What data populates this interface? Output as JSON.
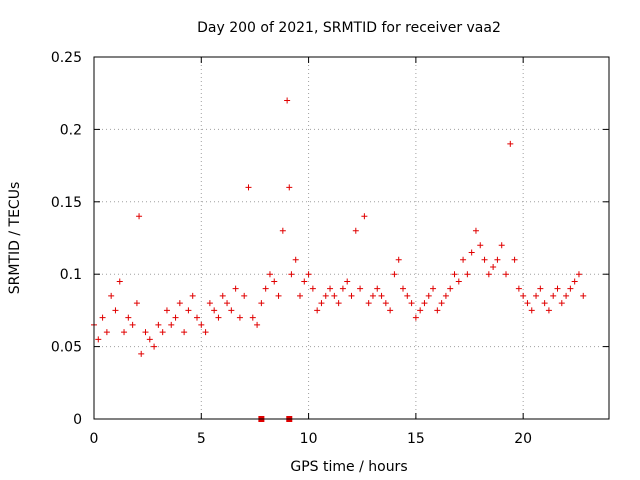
{
  "chart_data": {
    "type": "scatter",
    "title": "Day 200 of 2021, SRMTID for receiver vaa2",
    "xlabel": "GPS time / hours",
    "ylabel": "SRMTID / TECUs",
    "xlim": [
      0,
      24
    ],
    "ylim": [
      0,
      0.25
    ],
    "xticks": [
      0,
      5,
      10,
      15,
      20
    ],
    "yticks": [
      0,
      0.05,
      0.1,
      0.15,
      0.2,
      0.25
    ],
    "xtick_labels": [
      "0",
      "5",
      "10",
      "15",
      "20"
    ],
    "ytick_labels": [
      "0",
      "0.05",
      "0.1",
      "0.15",
      "0.2",
      "0.25"
    ],
    "grid": true,
    "marker": "+",
    "color": "#e00000",
    "series": [
      {
        "name": "SRMTID",
        "x": [
          0.0,
          0.2,
          0.4,
          0.6,
          0.8,
          1.0,
          1.2,
          1.4,
          1.6,
          1.8,
          2.0,
          2.1,
          2.2,
          2.4,
          2.6,
          2.8,
          3.0,
          3.2,
          3.4,
          3.6,
          3.8,
          4.0,
          4.2,
          4.4,
          4.6,
          4.8,
          5.0,
          5.2,
          5.4,
          5.6,
          5.8,
          6.0,
          6.2,
          6.4,
          6.6,
          6.8,
          7.0,
          7.2,
          7.4,
          7.6,
          7.8,
          8.0,
          8.2,
          8.4,
          8.6,
          8.8,
          9.0,
          9.1,
          9.2,
          9.4,
          9.6,
          9.8,
          10.0,
          10.2,
          10.4,
          10.6,
          10.8,
          11.0,
          11.2,
          11.4,
          11.6,
          11.8,
          12.0,
          12.2,
          12.4,
          12.6,
          12.8,
          13.0,
          13.2,
          13.4,
          13.6,
          13.8,
          14.0,
          14.2,
          14.4,
          14.6,
          14.8,
          15.0,
          15.2,
          15.4,
          15.6,
          15.8,
          16.0,
          16.2,
          16.4,
          16.6,
          16.8,
          17.0,
          17.2,
          17.4,
          17.6,
          17.8,
          18.0,
          18.2,
          18.4,
          18.6,
          18.8,
          19.0,
          19.2,
          19.4,
          19.6,
          19.8,
          20.0,
          20.2,
          20.4,
          20.6,
          20.8,
          21.0,
          21.2,
          21.4,
          21.6,
          21.8,
          22.0,
          22.2,
          22.4,
          22.6,
          22.8
        ],
        "y": [
          0.065,
          0.055,
          0.07,
          0.06,
          0.085,
          0.075,
          0.095,
          0.06,
          0.07,
          0.065,
          0.08,
          0.14,
          0.045,
          0.06,
          0.055,
          0.05,
          0.065,
          0.06,
          0.075,
          0.065,
          0.07,
          0.08,
          0.06,
          0.075,
          0.085,
          0.07,
          0.065,
          0.06,
          0.08,
          0.075,
          0.07,
          0.085,
          0.08,
          0.075,
          0.09,
          0.07,
          0.085,
          0.16,
          0.07,
          0.065,
          0.08,
          0.09,
          0.1,
          0.095,
          0.085,
          0.13,
          0.22,
          0.16,
          0.1,
          0.11,
          0.085,
          0.095,
          0.1,
          0.09,
          0.075,
          0.08,
          0.085,
          0.09,
          0.085,
          0.08,
          0.09,
          0.095,
          0.085,
          0.13,
          0.09,
          0.14,
          0.08,
          0.085,
          0.09,
          0.085,
          0.08,
          0.075,
          0.1,
          0.11,
          0.09,
          0.085,
          0.08,
          0.07,
          0.075,
          0.08,
          0.085,
          0.09,
          0.075,
          0.08,
          0.085,
          0.09,
          0.1,
          0.095,
          0.11,
          0.1,
          0.115,
          0.13,
          0.12,
          0.11,
          0.1,
          0.105,
          0.11,
          0.12,
          0.1,
          0.19,
          0.11,
          0.09,
          0.085,
          0.08,
          0.075,
          0.085,
          0.09,
          0.08,
          0.075,
          0.085,
          0.09,
          0.08,
          0.085,
          0.09,
          0.095,
          0.1,
          0.085
        ]
      }
    ],
    "zero_markers_x": [
      7.8,
      9.1
    ]
  }
}
